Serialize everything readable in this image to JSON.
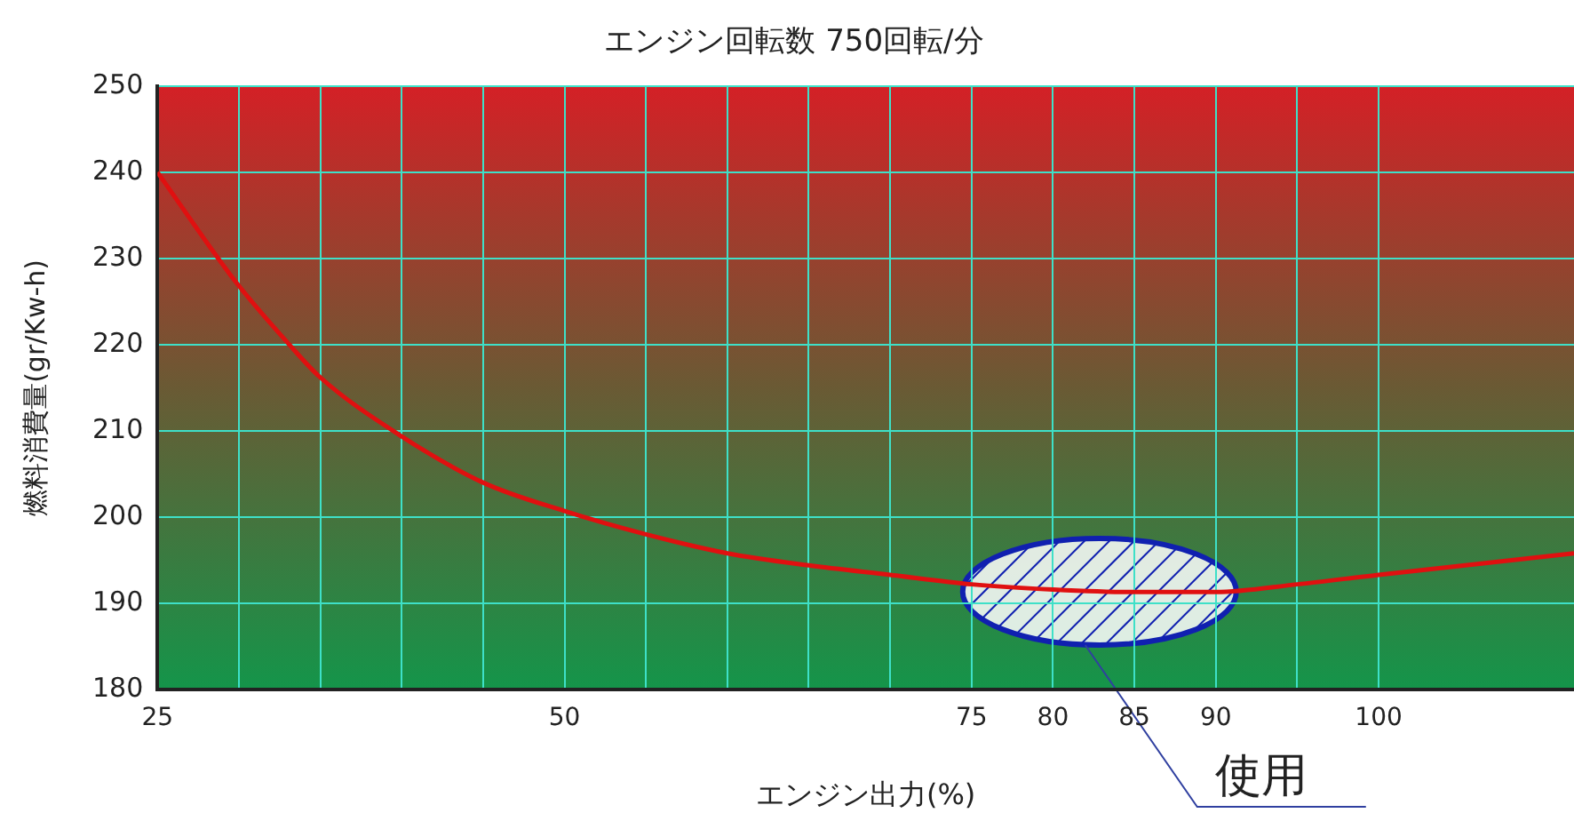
{
  "chart_data": {
    "type": "line",
    "title": "エンジン回転数 750回転/分",
    "xlabel": "エンジン出力(%)",
    "ylabel": "燃料消費量(gr/Kw-h)",
    "x": [
      25,
      29.8,
      33.1,
      35,
      39.8,
      45,
      50,
      55,
      60,
      65,
      70,
      75,
      80,
      85,
      90,
      95,
      100,
      112
    ],
    "series": [
      {
        "color": "#e01010",
        "values": [
          240,
          227.3,
          220,
          216.2,
          209.6,
          204,
          200.7,
          198,
          195.8,
          194.4,
          193.3,
          192.2,
          191.6,
          191.3,
          191.3,
          192.2,
          193.3,
          195.8
        ]
      }
    ],
    "xlim": [
      25,
      112
    ],
    "ylim": [
      180,
      250
    ],
    "xticks": [
      25,
      {
        "value": 30,
        "label": null
      },
      {
        "value": 35,
        "label": null
      },
      {
        "value": 40,
        "label": null
      },
      {
        "value": 45,
        "label": null
      },
      50,
      {
        "value": 55,
        "label": null
      },
      {
        "value": 60,
        "label": null
      },
      {
        "value": 65,
        "label": null
      },
      {
        "value": 70,
        "label": null
      },
      75,
      80,
      85,
      90,
      {
        "value": 95,
        "label": null
      },
      100
    ],
    "yticks": [
      180,
      190,
      200,
      210,
      220,
      230,
      240,
      250
    ],
    "annotations": [
      "使用"
    ],
    "grid": true,
    "legend": false,
    "marker": "none",
    "line_style": "solid"
  }
}
